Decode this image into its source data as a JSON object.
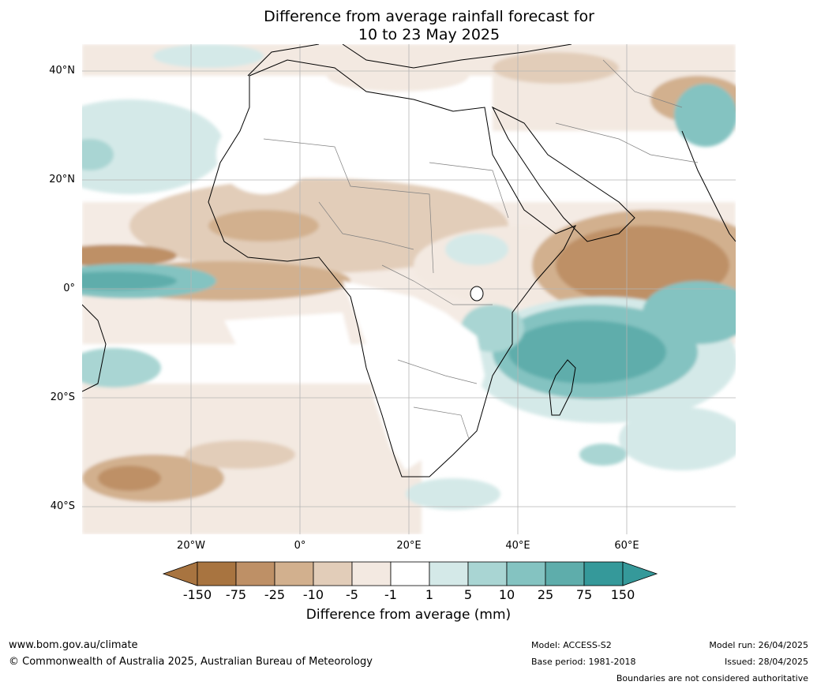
{
  "title": {
    "line1": "Difference from average rainfall forecast for",
    "line2": "10 to 23 May 2025"
  },
  "map": {
    "lat_labels": [
      "40°N",
      "20°N",
      "0°",
      "20°S",
      "40°S"
    ],
    "lon_labels": [
      "20°W",
      "0°",
      "20°E",
      "40°E",
      "60°E"
    ]
  },
  "legend": {
    "title": "Difference from average (mm)",
    "ticks": [
      "-150",
      "-75",
      "-25",
      "-10",
      "-5",
      "-1",
      "1",
      "5",
      "10",
      "25",
      "75",
      "150"
    ],
    "colors": [
      "#a87440",
      "#be9066",
      "#d2b08e",
      "#e2cdb9",
      "#f3e9e1",
      "#ffffff",
      "#d4e9e8",
      "#a9d5d3",
      "#84c3c1",
      "#5eadab",
      "#35999a"
    ],
    "extend_low_color": "#a87440",
    "extend_high_color": "#35999a"
  },
  "footer": {
    "website": "www.bom.gov.au/climate",
    "copyright": "© Commonwealth of Australia 2025, Australian Bureau of Meteorology",
    "model": "Model: ACCESS-S2",
    "base_period": "Base period: 1981-2018",
    "model_run": "Model run: 26/04/2025",
    "issued": "Issued: 28/04/2025",
    "disclaimer": "Boundaries are not considered authoritative"
  }
}
